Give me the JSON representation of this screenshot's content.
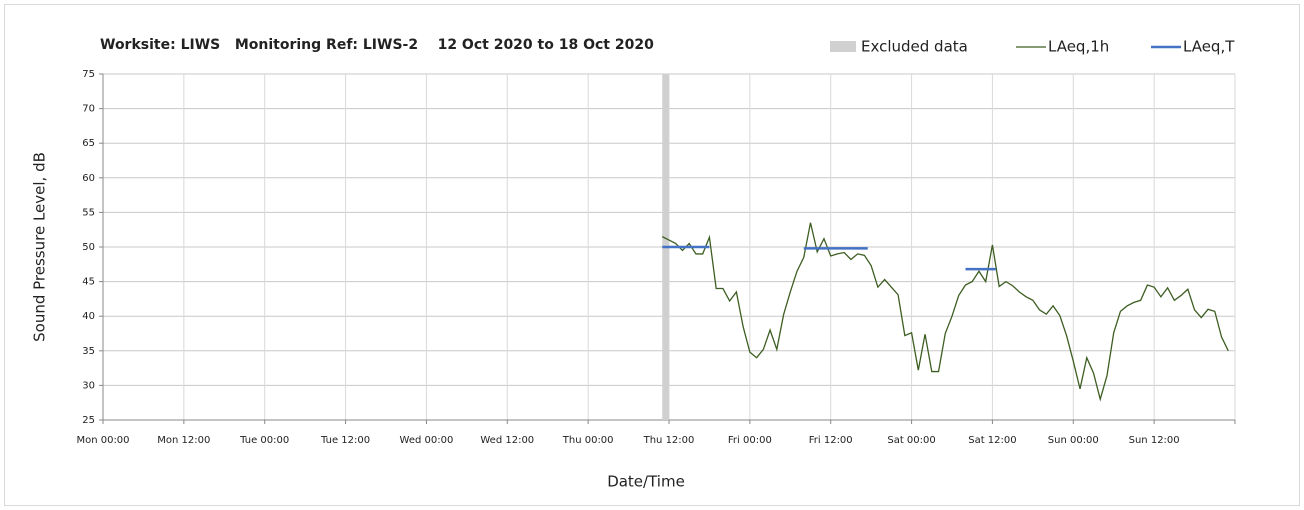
{
  "chart_data": {
    "type": "line",
    "title": "Worksite: LIWS   Monitoring Ref: LIWS-2    12 Oct 2020 to 18 Oct 2020",
    "xlabel": "Date/Time",
    "ylabel": "Sound Pressure Level, dB",
    "xlim": [
      0,
      168
    ],
    "xticks": [
      {
        "value": 0,
        "label": "Mon 00:00"
      },
      {
        "value": 12,
        "label": "Mon 12:00"
      },
      {
        "value": 24,
        "label": "Tue 00:00"
      },
      {
        "value": 36,
        "label": "Tue 12:00"
      },
      {
        "value": 48,
        "label": "Wed 00:00"
      },
      {
        "value": 60,
        "label": "Wed 12:00"
      },
      {
        "value": 72,
        "label": "Thu 00:00"
      },
      {
        "value": 84,
        "label": "Thu 12:00"
      },
      {
        "value": 96,
        "label": "Fri 00:00"
      },
      {
        "value": 108,
        "label": "Fri 12:00"
      },
      {
        "value": 120,
        "label": "Sat 00:00"
      },
      {
        "value": 132,
        "label": "Sat 12:00"
      },
      {
        "value": 144,
        "label": "Sun 00:00"
      },
      {
        "value": 156,
        "label": "Sun 12:00"
      }
    ],
    "ylim": [
      25,
      75
    ],
    "yticks": [
      25,
      30,
      35,
      40,
      45,
      50,
      55,
      60,
      65,
      70,
      75
    ],
    "grid": true,
    "legend": "top-right",
    "excluded": {
      "name": "Excluded data",
      "color": "#d0d0d0",
      "x": [
        83,
        84
      ]
    },
    "series": [
      {
        "name": "LAeq,1h",
        "color": "#3d5e22",
        "x": [
          83,
          84,
          85,
          86,
          87,
          88,
          89,
          90,
          91,
          92,
          93,
          94,
          95,
          96,
          97,
          98,
          99,
          100,
          101,
          102,
          103,
          104,
          105,
          106,
          107,
          108,
          109,
          110,
          111,
          112,
          113,
          114,
          115,
          116,
          117,
          118,
          119,
          120,
          121,
          122,
          123,
          124,
          125,
          126,
          127,
          128,
          129,
          130,
          131,
          132,
          133,
          134,
          135,
          136,
          137,
          138,
          139,
          140,
          141,
          142,
          143,
          144,
          145,
          146,
          147,
          148,
          149,
          150,
          151,
          152,
          153,
          154,
          155,
          156,
          157,
          158,
          159,
          160,
          161,
          162,
          163,
          164,
          165,
          166,
          167
        ],
        "values": [
          51.5,
          51,
          50.5,
          49.5,
          50.5,
          49,
          49,
          51.4,
          44,
          44,
          42.2,
          43.5,
          38.5,
          34.8,
          34,
          35.2,
          38,
          35.2,
          40.2,
          43.5,
          46.5,
          48.5,
          53.5,
          49.3,
          51.2,
          48.7,
          49,
          49.2,
          48.2,
          49,
          48.8,
          47.3,
          44.2,
          45.3,
          44.2,
          43.1,
          37.2,
          37.6,
          32.2,
          37.4,
          32,
          32,
          37.5,
          40,
          43,
          44.5,
          45,
          46.5,
          45,
          50.3,
          44.3,
          45,
          44.4,
          43.5,
          42.8,
          42.3,
          40.9,
          40.3,
          41.5,
          40.1,
          37.2,
          33.5,
          29.5,
          34,
          31.8,
          28,
          31.4,
          37.6,
          40.7,
          41.5,
          42,
          42.3,
          44.5,
          44.2,
          42.8,
          44.1,
          42.3,
          43,
          43.9,
          40.9,
          39.8,
          41,
          40.7,
          37,
          35
        ]
      },
      {
        "name": "LAeq,T",
        "color": "#4472c4",
        "segments": [
          {
            "x": [
              83,
              90
            ],
            "value": 50
          },
          {
            "x": [
              104,
              113.5
            ],
            "value": 49.8
          },
          {
            "x": [
              128,
              132.5
            ],
            "value": 46.8
          }
        ]
      }
    ]
  }
}
